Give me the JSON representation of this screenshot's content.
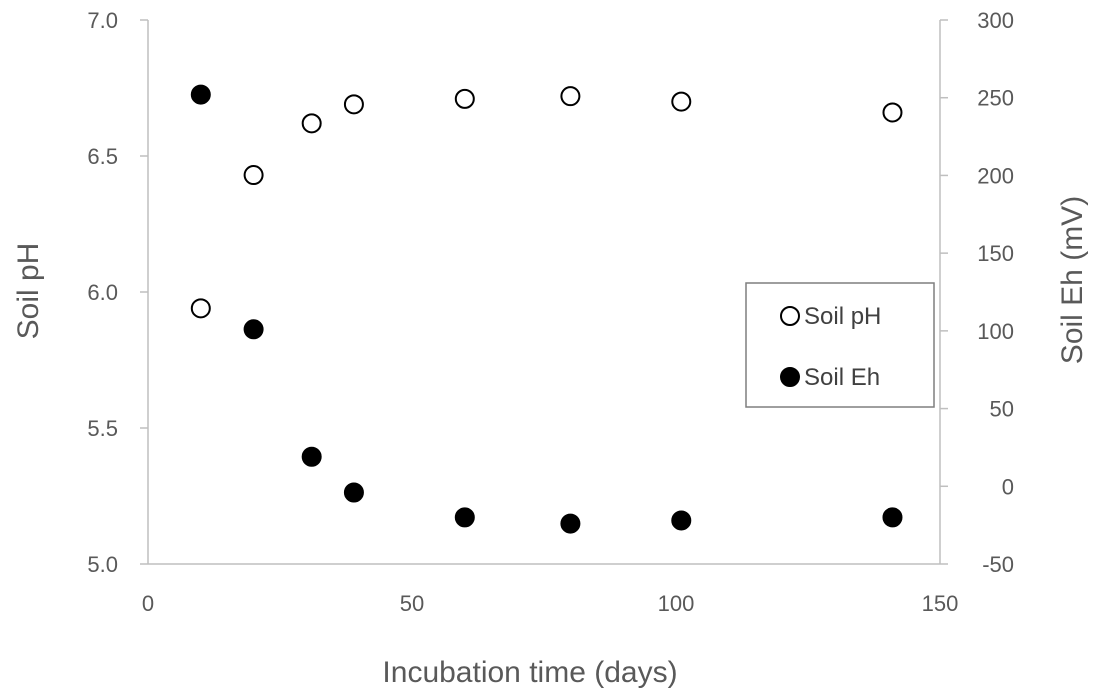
{
  "chart_data": {
    "type": "scatter",
    "title": "",
    "xlabel": "Incubation time (days)",
    "ylabel_left": "Soil pH",
    "ylabel_right": "Soil Eh (mV)",
    "xlim": [
      0,
      150
    ],
    "ylim_left": [
      5.0,
      7.0
    ],
    "ylim_right": [
      -50,
      300
    ],
    "x_ticks": [
      "0",
      "50",
      "100",
      "150"
    ],
    "y_ticks_left": [
      "5.0",
      "5.5",
      "6.0",
      "6.5",
      "7.0"
    ],
    "y_ticks_right": [
      "-50",
      "0",
      "50",
      "100",
      "150",
      "200",
      "250",
      "300"
    ],
    "grid": false,
    "legend_position": "right",
    "series": [
      {
        "name": "Soil pH",
        "axis": "left",
        "marker": "open-circle",
        "x": [
          10,
          20,
          31,
          39,
          60,
          80,
          101,
          141
        ],
        "y": [
          5.94,
          6.43,
          6.62,
          6.69,
          6.71,
          6.72,
          6.7,
          6.66
        ]
      },
      {
        "name": "Soil Eh",
        "axis": "right",
        "marker": "filled-circle",
        "x": [
          10,
          20,
          31,
          39,
          60,
          80,
          101,
          141
        ],
        "y": [
          252,
          101,
          19,
          -4,
          -20,
          -24,
          -22,
          -20
        ]
      }
    ]
  }
}
